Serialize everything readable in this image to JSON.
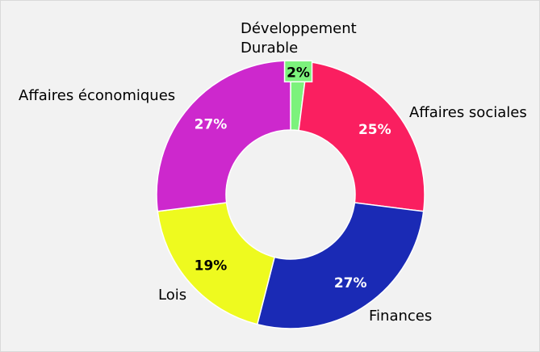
{
  "chart_data": {
    "type": "pie",
    "donut": true,
    "categories": [
      "Développement Durable",
      "Affaires sociales",
      "Finances",
      "Lois",
      "Affaires économiques"
    ],
    "values": [
      2,
      25,
      27,
      19,
      27
    ],
    "value_labels": [
      "2%",
      "25%",
      "27%",
      "19%",
      "27%"
    ],
    "colors": [
      "#7cf27c",
      "#fa1f60",
      "#1a2ab5",
      "#eefa1f",
      "#cd28cd"
    ],
    "label_text_colors": [
      "#000000",
      "#ffffff",
      "#ffffff",
      "#000000",
      "#ffffff"
    ],
    "start_angle": "top",
    "direction": "clockwise",
    "title": "",
    "legend": "none"
  }
}
